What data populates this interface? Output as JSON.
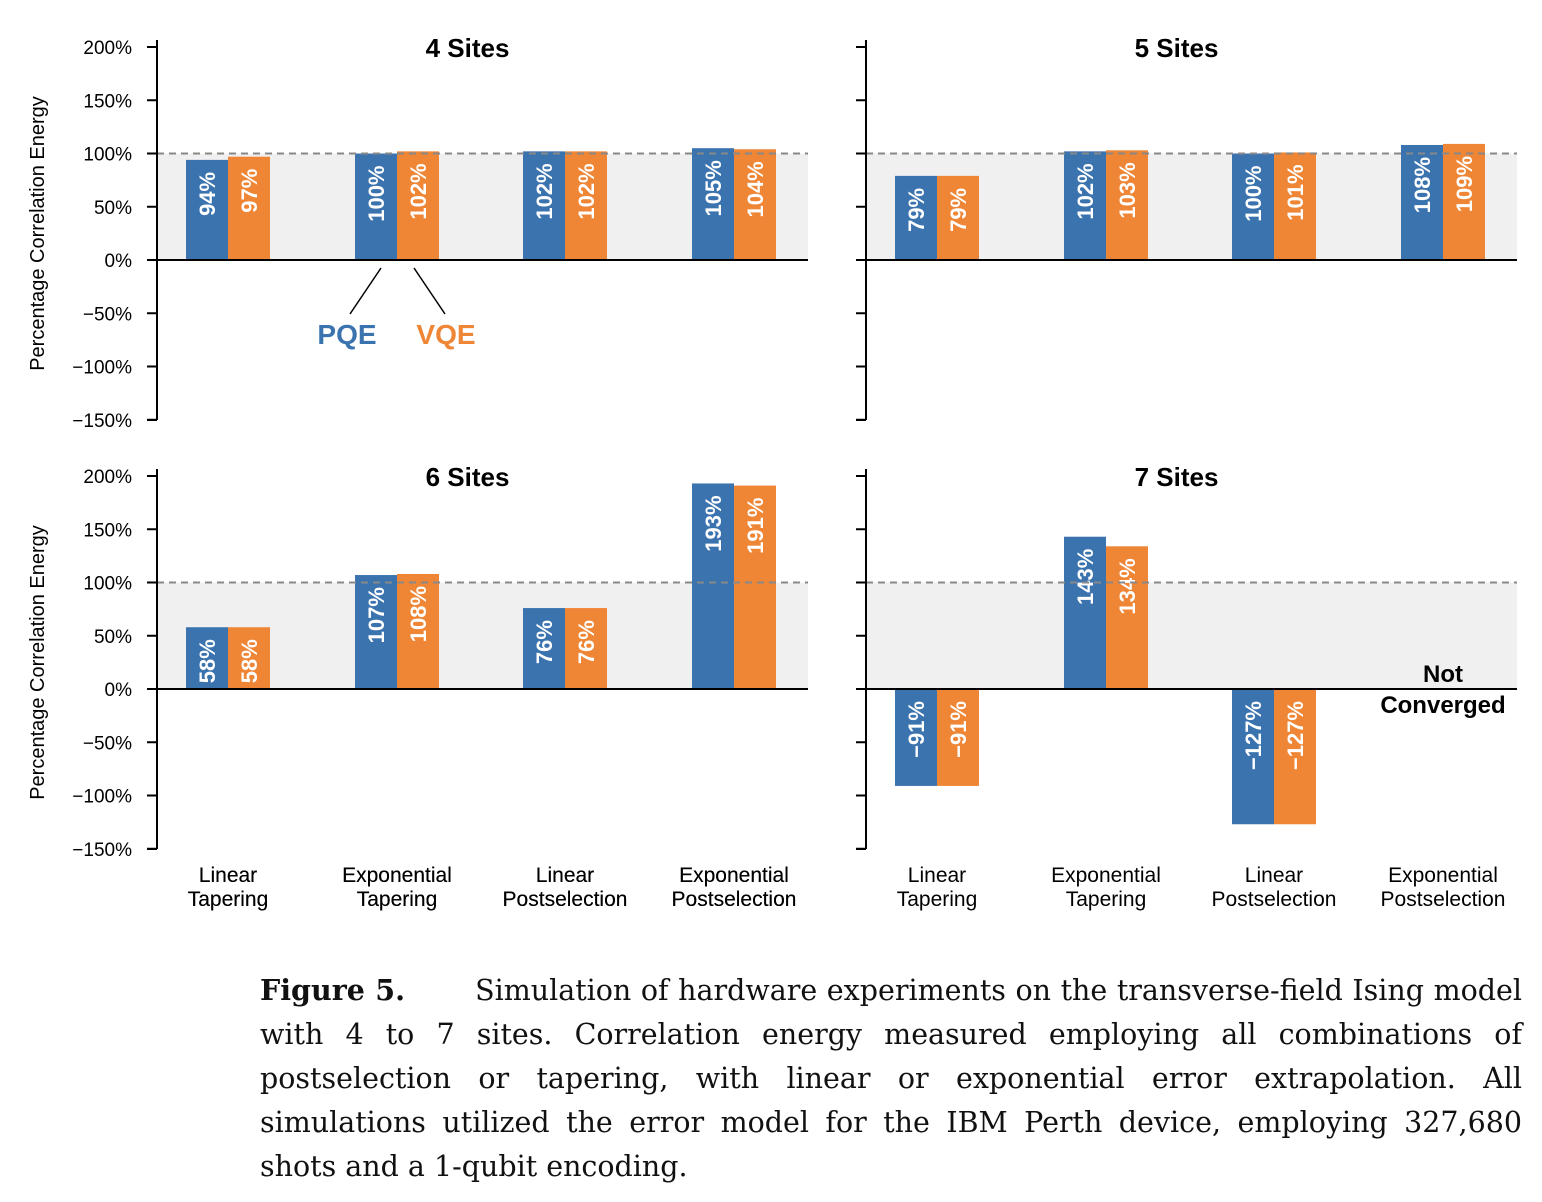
{
  "chart_data": [
    {
      "type": "bar",
      "title": "4 Sites",
      "ylabel": "Percentage Correlation Energy",
      "ylim": [
        -150,
        200
      ],
      "yticks": [
        "200%",
        "150%",
        "100%",
        "50%",
        "0%",
        "−50%",
        "−100%",
        "−150%"
      ],
      "reference_line": 100,
      "categories": [
        "Linear Tapering",
        "Exponential Tapering",
        "Linear Postselection",
        "Exponential Postselection"
      ],
      "category_lines": [
        [
          "Linear",
          "Tapering"
        ],
        [
          "Exponential",
          "Tapering"
        ],
        [
          "Linear",
          "Postselection"
        ],
        [
          "Exponential",
          "Postselection"
        ]
      ],
      "series": [
        {
          "name": "PQE",
          "values": [
            94,
            100,
            102,
            105
          ],
          "labels": [
            "94%",
            "100%",
            "102%",
            "105%"
          ]
        },
        {
          "name": "VQE",
          "values": [
            97,
            102,
            102,
            104
          ],
          "labels": [
            "97%",
            "102%",
            "102%",
            "104%"
          ]
        }
      ],
      "legend": {
        "pqe": "PQE",
        "vqe": "VQE"
      }
    },
    {
      "type": "bar",
      "title": "5 Sites",
      "ylim": [
        -150,
        200
      ],
      "reference_line": 100,
      "categories": [
        "Linear Tapering",
        "Exponential Tapering",
        "Linear Postselection",
        "Exponential Postselection"
      ],
      "series": [
        {
          "name": "PQE",
          "values": [
            79,
            102,
            100,
            108
          ],
          "labels": [
            "79%",
            "102%",
            "100%",
            "108%"
          ]
        },
        {
          "name": "VQE",
          "values": [
            79,
            103,
            101,
            109
          ],
          "labels": [
            "79%",
            "103%",
            "101%",
            "109%"
          ]
        }
      ]
    },
    {
      "type": "bar",
      "title": "6 Sites",
      "ylabel": "Percentage Correlation Energy",
      "ylim": [
        -150,
        200
      ],
      "yticks": [
        "200%",
        "150%",
        "100%",
        "50%",
        "0%",
        "−50%",
        "−100%",
        "−150%"
      ],
      "reference_line": 100,
      "categories": [
        "Linear Tapering",
        "Exponential Tapering",
        "Linear Postselection",
        "Exponential Postselection"
      ],
      "category_lines": [
        [
          "Linear",
          "Tapering"
        ],
        [
          "Exponential",
          "Tapering"
        ],
        [
          "Linear",
          "Postselection"
        ],
        [
          "Exponential",
          "Postselection"
        ]
      ],
      "series": [
        {
          "name": "PQE",
          "values": [
            58,
            107,
            76,
            193
          ],
          "labels": [
            "58%",
            "107%",
            "76%",
            "193%"
          ]
        },
        {
          "name": "VQE",
          "values": [
            58,
            108,
            76,
            191
          ],
          "labels": [
            "58%",
            "108%",
            "76%",
            "191%"
          ]
        }
      ]
    },
    {
      "type": "bar",
      "title": "7 Sites",
      "ylim": [
        -150,
        200
      ],
      "reference_line": 100,
      "categories": [
        "Linear Tapering",
        "Exponential Tapering",
        "Linear Postselection",
        "Exponential Postselection"
      ],
      "category_lines": [
        [
          "Linear",
          "Tapering"
        ],
        [
          "Exponential",
          "Tapering"
        ],
        [
          "Linear",
          "Postselection"
        ],
        [
          "Exponential",
          "Postselection"
        ]
      ],
      "series": [
        {
          "name": "PQE",
          "values": [
            -91,
            143,
            -127,
            null
          ],
          "labels": [
            "−91%",
            "143%",
            "−127%",
            ""
          ]
        },
        {
          "name": "VQE",
          "values": [
            -91,
            134,
            -127,
            null
          ],
          "labels": [
            "−91%",
            "134%",
            "−127%",
            ""
          ]
        }
      ],
      "note": [
        "Not",
        "Converged"
      ]
    }
  ],
  "colors": {
    "pqe": "#3b73af",
    "vqe": "#ef8636",
    "shade": "#f0f0f0",
    "refline": "#888888"
  },
  "caption": {
    "label": "Figure 5.",
    "text": "Simulation of hardware experiments on the transverse-field Ising model with 4 to 7 sites. Correlation energy measured employing all combinations of postselection or tapering, with linear or exponential error extrapolation. All simulations utilized the error model for the IBM Perth device, employing 327,680 shots and a 1-qubit encoding."
  }
}
